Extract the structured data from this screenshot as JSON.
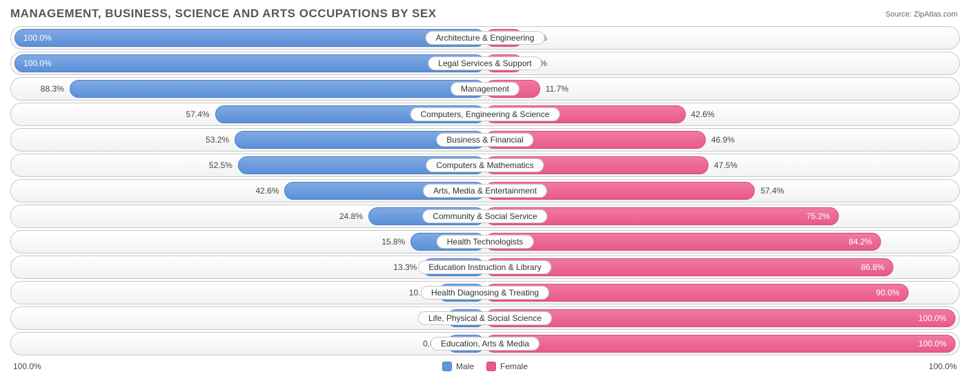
{
  "title": "MANAGEMENT, BUSINESS, SCIENCE AND ARTS OCCUPATIONS BY SEX",
  "source_label": "Source:",
  "source_value": "ZipAtlas.com",
  "chart": {
    "type": "diverging-bar",
    "male_color": "#6495da",
    "female_color": "#e85a88",
    "row_border": "#c8c8c8",
    "bg_gradient_top": "#ffffff",
    "bg_gradient_bottom": "#f2f2f2",
    "label_fontsize": 12,
    "title_fontsize": 17,
    "title_color": "#565656",
    "min_bar_pct": 8,
    "rows": [
      {
        "label": "Architecture & Engineering",
        "male": 100.0,
        "female": 0.0
      },
      {
        "label": "Legal Services & Support",
        "male": 100.0,
        "female": 0.0
      },
      {
        "label": "Management",
        "male": 88.3,
        "female": 11.7
      },
      {
        "label": "Computers, Engineering & Science",
        "male": 57.4,
        "female": 42.6
      },
      {
        "label": "Business & Financial",
        "male": 53.2,
        "female": 46.9
      },
      {
        "label": "Computers & Mathematics",
        "male": 52.5,
        "female": 47.5
      },
      {
        "label": "Arts, Media & Entertainment",
        "male": 42.6,
        "female": 57.4
      },
      {
        "label": "Community & Social Service",
        "male": 24.8,
        "female": 75.2
      },
      {
        "label": "Health Technologists",
        "male": 15.8,
        "female": 84.2
      },
      {
        "label": "Education Instruction & Library",
        "male": 13.3,
        "female": 86.8
      },
      {
        "label": "Health Diagnosing & Treating",
        "male": 10.0,
        "female": 90.0
      },
      {
        "label": "Life, Physical & Social Science",
        "male": 0.0,
        "female": 100.0
      },
      {
        "label": "Education, Arts & Media",
        "male": 0.0,
        "female": 100.0
      }
    ]
  },
  "legend": {
    "male": "Male",
    "female": "Female"
  },
  "axis": {
    "left": "100.0%",
    "right": "100.0%"
  }
}
